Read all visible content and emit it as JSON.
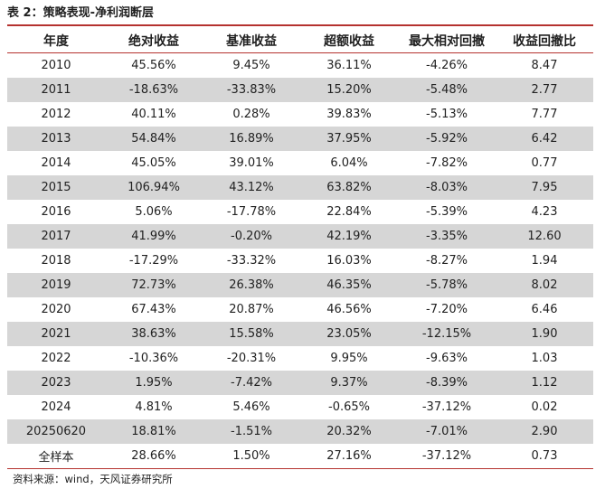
{
  "title": "表 2：策略表现-净利润断层",
  "columns": [
    "年度",
    "绝对收益",
    "基准收益",
    "超额收益",
    "最大相对回撤",
    "收益回撤比"
  ],
  "rows": [
    [
      "2010",
      "45.56%",
      "9.45%",
      "36.11%",
      "-4.26%",
      "8.47"
    ],
    [
      "2011",
      "-18.63%",
      "-33.83%",
      "15.20%",
      "-5.48%",
      "2.77"
    ],
    [
      "2012",
      "40.11%",
      "0.28%",
      "39.83%",
      "-5.13%",
      "7.77"
    ],
    [
      "2013",
      "54.84%",
      "16.89%",
      "37.95%",
      "-5.92%",
      "6.42"
    ],
    [
      "2014",
      "45.05%",
      "39.01%",
      "6.04%",
      "-7.82%",
      "0.77"
    ],
    [
      "2015",
      "106.94%",
      "43.12%",
      "63.82%",
      "-8.03%",
      "7.95"
    ],
    [
      "2016",
      "5.06%",
      "-17.78%",
      "22.84%",
      "-5.39%",
      "4.23"
    ],
    [
      "2017",
      "41.99%",
      "-0.20%",
      "42.19%",
      "-3.35%",
      "12.60"
    ],
    [
      "2018",
      "-17.29%",
      "-33.32%",
      "16.03%",
      "-8.27%",
      "1.94"
    ],
    [
      "2019",
      "72.73%",
      "26.38%",
      "46.35%",
      "-5.78%",
      "8.02"
    ],
    [
      "2020",
      "67.43%",
      "20.87%",
      "46.56%",
      "-7.20%",
      "6.46"
    ],
    [
      "2021",
      "38.63%",
      "15.58%",
      "23.05%",
      "-12.15%",
      "1.90"
    ],
    [
      "2022",
      "-10.36%",
      "-20.31%",
      "9.95%",
      "-9.63%",
      "1.03"
    ],
    [
      "2023",
      "1.95%",
      "-7.42%",
      "9.37%",
      "-8.39%",
      "1.12"
    ],
    [
      "2024",
      "4.81%",
      "5.46%",
      "-0.65%",
      "-37.12%",
      "0.02"
    ],
    [
      "20250620",
      "18.81%",
      "-1.51%",
      "20.32%",
      "-7.01%",
      "2.90"
    ],
    [
      "全样本",
      "28.66%",
      "1.50%",
      "27.16%",
      "-37.12%",
      "0.73"
    ]
  ],
  "source": "资料来源：wind，天风证券研究所",
  "colors": {
    "accent_rule": "#b5322f",
    "shaded_row": "#d6d6d6"
  }
}
